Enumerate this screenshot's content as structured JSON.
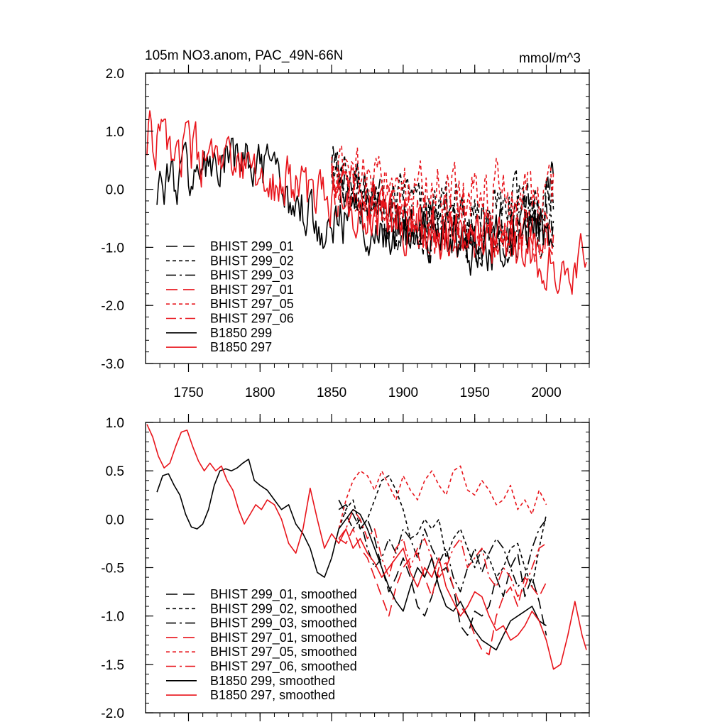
{
  "chart_data": [
    {
      "type": "line",
      "title": "105m NO3.anom, PAC_49N-66N",
      "units_label": "mmol/m^3",
      "xlim": [
        1720,
        2030
      ],
      "ylim": [
        -3.0,
        2.0
      ],
      "x_ticks": [
        1750,
        1800,
        1850,
        1900,
        1950,
        2000
      ],
      "x_tick_labels": [
        "1750",
        "1800",
        "1850",
        "1900",
        "1950",
        "2000"
      ],
      "y_ticks": [
        2.0,
        1.0,
        0.0,
        -1.0,
        -2.0,
        -3.0
      ],
      "y_tick_labels": [
        "2.0",
        "1.0",
        "0.0",
        "-1.0",
        "-2.0",
        "-3.0"
      ],
      "legend_placement": "lower-left",
      "series": [
        {
          "name": "BHIST 299_01",
          "color": "#000000",
          "dash": "long-dash",
          "x_range": [
            1850,
            2005
          ],
          "trend": [
            [
              1850,
              0.3
            ],
            [
              1900,
              -0.6
            ],
            [
              1950,
              -0.7
            ],
            [
              2005,
              0.0
            ]
          ],
          "noise": 0.42
        },
        {
          "name": "BHIST 299_02",
          "color": "#000000",
          "dash": "short-dash",
          "x_range": [
            1850,
            2005
          ],
          "trend": [
            [
              1850,
              0.1
            ],
            [
              1900,
              -0.3
            ],
            [
              1950,
              -0.4
            ],
            [
              2005,
              -0.2
            ]
          ],
          "noise": 0.42
        },
        {
          "name": "BHIST 299_03",
          "color": "#000000",
          "dash": "dash-dot",
          "x_range": [
            1850,
            2005
          ],
          "trend": [
            [
              1850,
              0.1
            ],
            [
              1900,
              -0.6
            ],
            [
              1950,
              -0.8
            ],
            [
              2005,
              -0.6
            ]
          ],
          "noise": 0.42
        },
        {
          "name": "BHIST 297_01",
          "color": "#e8141b",
          "dash": "long-dash",
          "x_range": [
            1850,
            2005
          ],
          "trend": [
            [
              1850,
              0.0
            ],
            [
              1900,
              -0.5
            ],
            [
              1950,
              -0.9
            ],
            [
              2005,
              -0.6
            ]
          ],
          "noise": 0.42
        },
        {
          "name": "BHIST 297_05",
          "color": "#e8141b",
          "dash": "short-dash",
          "x_range": [
            1850,
            2005
          ],
          "trend": [
            [
              1850,
              0.2
            ],
            [
              1900,
              0.1
            ],
            [
              1950,
              0.0
            ],
            [
              2005,
              -0.1
            ]
          ],
          "noise": 0.45
        },
        {
          "name": "BHIST 297_06",
          "color": "#e8141b",
          "dash": "dash-dot",
          "x_range": [
            1850,
            2005
          ],
          "trend": [
            [
              1850,
              0.0
            ],
            [
              1900,
              -0.4
            ],
            [
              1950,
              -0.7
            ],
            [
              2005,
              -0.7
            ]
          ],
          "noise": 0.42
        },
        {
          "name": "B1850 299",
          "color": "#000000",
          "dash": "solid",
          "x_range": [
            1728,
            2005
          ],
          "trend": [
            [
              1728,
              0.1
            ],
            [
              1790,
              0.5
            ],
            [
              1840,
              -0.5
            ],
            [
              1900,
              -0.7
            ],
            [
              1950,
              -1.0
            ],
            [
              2005,
              -0.5
            ]
          ],
          "noise": 0.4
        },
        {
          "name": "B1850 297",
          "color": "#e8141b",
          "dash": "solid",
          "x_range": [
            1721,
            2028
          ],
          "trend": [
            [
              1721,
              0.9
            ],
            [
              1770,
              0.4
            ],
            [
              1820,
              0.1
            ],
            [
              1850,
              -0.2
            ],
            [
              1900,
              -0.6
            ],
            [
              1950,
              -0.9
            ],
            [
              2000,
              -1.1
            ],
            [
              2028,
              -1.3
            ]
          ],
          "noise": 0.4
        }
      ]
    },
    {
      "type": "line",
      "xlim": [
        1720,
        2030
      ],
      "ylim": [
        -2.0,
        1.0
      ],
      "x_ticks": [
        1750,
        1800,
        1850,
        1900,
        1950,
        2000
      ],
      "y_ticks": [
        1.0,
        0.5,
        0.0,
        -0.5,
        -1.0,
        -1.5,
        -2.0
      ],
      "y_tick_labels": [
        "1.0",
        "0.5",
        "0.0",
        "-0.5",
        "-1.0",
        "-1.5",
        "-2.0"
      ],
      "legend_placement": "lower-left",
      "series": [
        {
          "name": "BHIST 299_01, smoothed",
          "color": "#000000",
          "dash": "long-dash",
          "x": [
            1855,
            1860,
            1865,
            1870,
            1875,
            1880,
            1885,
            1890,
            1895,
            1900,
            1905,
            1910,
            1915,
            1920,
            1925,
            1930,
            1935,
            1940,
            1945,
            1950,
            1955,
            1960,
            1965,
            1970,
            1975,
            1980,
            1985,
            1990,
            1995,
            2000
          ],
          "y": [
            0.1,
            0.15,
            0.05,
            -0.1,
            0.0,
            -0.2,
            -0.5,
            -0.75,
            -0.6,
            -0.4,
            -0.6,
            -0.9,
            -1.0,
            -0.8,
            -0.55,
            -0.5,
            -0.7,
            -1.1,
            -1.2,
            -0.95,
            -1.0,
            -0.9,
            -0.6,
            -0.8,
            -0.5,
            -0.35,
            -0.8,
            -0.6,
            -0.85,
            -1.2
          ]
        },
        {
          "name": "BHIST 299_02, smoothed",
          "color": "#000000",
          "dash": "short-dash",
          "x": [
            1855,
            1860,
            1865,
            1870,
            1875,
            1880,
            1885,
            1890,
            1895,
            1900,
            1905,
            1910,
            1915,
            1920,
            1925,
            1930,
            1935,
            1940,
            1945,
            1950,
            1955,
            1960,
            1965,
            1970,
            1975,
            1980,
            1985,
            1990,
            1995,
            2000
          ],
          "y": [
            -0.1,
            0.1,
            0.2,
            -0.1,
            0.0,
            0.2,
            0.4,
            0.45,
            0.3,
            0.1,
            -0.2,
            -0.15,
            0.0,
            -0.1,
            0.0,
            -0.4,
            -0.2,
            -0.1,
            -0.3,
            -0.5,
            -0.3,
            -0.4,
            -0.6,
            -0.5,
            -0.3,
            -0.25,
            -0.5,
            -0.7,
            -0.3,
            0.05
          ]
        },
        {
          "name": "BHIST 299_03, smoothed",
          "color": "#000000",
          "dash": "dash-dot",
          "x": [
            1855,
            1860,
            1865,
            1870,
            1875,
            1880,
            1885,
            1890,
            1895,
            1900,
            1905,
            1910,
            1915,
            1920,
            1925,
            1930,
            1935,
            1940,
            1945,
            1950,
            1955,
            1960,
            1965,
            1970,
            1975,
            1980,
            1985,
            1990,
            1995,
            2000
          ],
          "y": [
            0.2,
            0.05,
            -0.1,
            0.0,
            -0.3,
            -0.5,
            -0.4,
            -0.2,
            -0.35,
            -0.1,
            -0.2,
            -0.4,
            -0.1,
            -0.3,
            -0.45,
            -0.3,
            -0.6,
            -0.75,
            -0.5,
            -0.3,
            -0.55,
            -0.35,
            -0.2,
            -0.3,
            -0.5,
            -0.7,
            -0.6,
            -0.3,
            -0.1,
            0.0
          ]
        },
        {
          "name": "BHIST 297_01, smoothed",
          "color": "#e8141b",
          "dash": "long-dash",
          "x": [
            1855,
            1860,
            1865,
            1870,
            1875,
            1880,
            1885,
            1890,
            1895,
            1900,
            1905,
            1910,
            1915,
            1920,
            1925,
            1930,
            1935,
            1940,
            1945,
            1950,
            1955,
            1960,
            1965,
            1970,
            1975,
            1980,
            1985,
            1990,
            1995,
            2000
          ],
          "y": [
            -0.2,
            -0.25,
            -0.1,
            -0.3,
            -0.4,
            -0.6,
            -0.8,
            -1.0,
            -0.7,
            -0.5,
            -0.4,
            -0.35,
            -0.6,
            -0.8,
            -0.5,
            -0.45,
            -0.7,
            -0.9,
            -1.0,
            -1.2,
            -1.35,
            -1.4,
            -1.0,
            -0.8,
            -0.7,
            -0.9,
            -0.6,
            -0.7,
            -0.8,
            -0.65
          ]
        },
        {
          "name": "BHIST 297_05, smoothed",
          "color": "#e8141b",
          "dash": "short-dash",
          "x": [
            1855,
            1860,
            1865,
            1870,
            1875,
            1880,
            1885,
            1890,
            1895,
            1900,
            1905,
            1910,
            1915,
            1920,
            1925,
            1930,
            1935,
            1940,
            1945,
            1950,
            1955,
            1960,
            1965,
            1970,
            1975,
            1980,
            1985,
            1990,
            1995,
            2000
          ],
          "y": [
            -0.1,
            0.2,
            0.4,
            0.5,
            0.45,
            0.3,
            0.5,
            0.35,
            0.2,
            0.45,
            0.3,
            0.2,
            0.4,
            0.5,
            0.35,
            0.25,
            0.5,
            0.55,
            0.3,
            0.25,
            0.4,
            0.3,
            0.15,
            0.2,
            0.35,
            0.1,
            0.2,
            0.05,
            0.3,
            0.15
          ]
        },
        {
          "name": "BHIST 297_06, smoothed",
          "color": "#e8141b",
          "dash": "dash-dot",
          "x": [
            1855,
            1860,
            1865,
            1870,
            1875,
            1880,
            1885,
            1890,
            1895,
            1900,
            1905,
            1910,
            1915,
            1920,
            1925,
            1930,
            1935,
            1940,
            1945,
            1950,
            1955,
            1960,
            1965,
            1970,
            1975,
            1980,
            1985,
            1990,
            1995,
            2000
          ],
          "y": [
            -0.2,
            -0.1,
            0.1,
            0.0,
            -0.2,
            -0.1,
            -0.4,
            -0.6,
            -0.3,
            -0.2,
            -0.5,
            -0.3,
            -0.2,
            -0.4,
            -0.6,
            -0.5,
            -0.3,
            -0.2,
            -0.5,
            -0.4,
            -0.3,
            -0.6,
            -0.7,
            -0.5,
            -0.6,
            -0.8,
            -0.7,
            -0.5,
            -0.3,
            -0.25
          ]
        },
        {
          "name": "B1850 299, smoothed",
          "color": "#000000",
          "dash": "solid",
          "x": [
            1728,
            1732,
            1736,
            1740,
            1744,
            1748,
            1752,
            1756,
            1760,
            1764,
            1768,
            1772,
            1776,
            1780,
            1784,
            1788,
            1792,
            1796,
            1800,
            1805,
            1810,
            1815,
            1820,
            1825,
            1830,
            1835,
            1840,
            1845,
            1850,
            1855,
            1860,
            1865,
            1870,
            1875,
            1880,
            1885,
            1890,
            1895,
            1900,
            1905,
            1910,
            1915,
            1920,
            1925,
            1930,
            1935,
            1940,
            1945,
            1950,
            1955,
            1960,
            1965,
            1970,
            1975,
            1980,
            1985,
            1990,
            1995,
            2000
          ],
          "y": [
            0.28,
            0.45,
            0.47,
            0.35,
            0.25,
            0.05,
            -0.08,
            -0.1,
            -0.05,
            0.1,
            0.35,
            0.5,
            0.52,
            0.5,
            0.53,
            0.58,
            0.62,
            0.4,
            0.35,
            0.3,
            0.2,
            0.1,
            0.15,
            -0.05,
            -0.15,
            -0.3,
            -0.55,
            -0.6,
            -0.4,
            -0.1,
            0.0,
            0.1,
            0.05,
            -0.1,
            -0.3,
            -0.5,
            -0.7,
            -0.85,
            -0.95,
            -0.7,
            -0.5,
            -0.6,
            -0.4,
            -0.7,
            -0.9,
            -0.95,
            -0.85,
            -1.0,
            -1.15,
            -1.25,
            -1.3,
            -1.35,
            -1.2,
            -1.05,
            -1.0,
            -0.95,
            -0.9,
            -1.05,
            -1.1
          ]
        },
        {
          "name": "B1850 297, smoothed",
          "color": "#e8141b",
          "dash": "solid",
          "x": [
            1721,
            1725,
            1729,
            1733,
            1737,
            1741,
            1745,
            1749,
            1753,
            1757,
            1761,
            1765,
            1769,
            1773,
            1777,
            1781,
            1785,
            1789,
            1793,
            1797,
            1801,
            1805,
            1810,
            1815,
            1820,
            1825,
            1830,
            1835,
            1840,
            1845,
            1850,
            1855,
            1860,
            1865,
            1870,
            1875,
            1880,
            1885,
            1890,
            1895,
            1900,
            1905,
            1910,
            1915,
            1920,
            1925,
            1930,
            1935,
            1940,
            1945,
            1950,
            1955,
            1960,
            1965,
            1970,
            1975,
            1980,
            1985,
            1990,
            1995,
            2000,
            2005,
            2010,
            2015,
            2020,
            2025,
            2028
          ],
          "y": [
            0.98,
            0.85,
            0.65,
            0.53,
            0.58,
            0.75,
            0.9,
            0.92,
            0.75,
            0.6,
            0.5,
            0.58,
            0.5,
            0.55,
            0.4,
            0.3,
            0.1,
            -0.05,
            0.05,
            0.15,
            0.1,
            0.2,
            0.15,
            0.0,
            -0.25,
            -0.35,
            -0.1,
            0.32,
            0.0,
            -0.3,
            -0.15,
            -0.25,
            -0.1,
            -0.3,
            -0.2,
            -0.35,
            -0.45,
            -0.6,
            -0.5,
            -0.4,
            -0.3,
            -0.55,
            -0.7,
            -0.5,
            -0.6,
            -0.4,
            -0.7,
            -0.85,
            -1.0,
            -0.9,
            -0.75,
            -0.8,
            -1.0,
            -1.15,
            -1.1,
            -1.25,
            -1.2,
            -1.1,
            -0.95,
            -1.05,
            -1.25,
            -1.55,
            -1.5,
            -1.2,
            -0.85,
            -1.2,
            -1.35
          ]
        }
      ]
    }
  ]
}
